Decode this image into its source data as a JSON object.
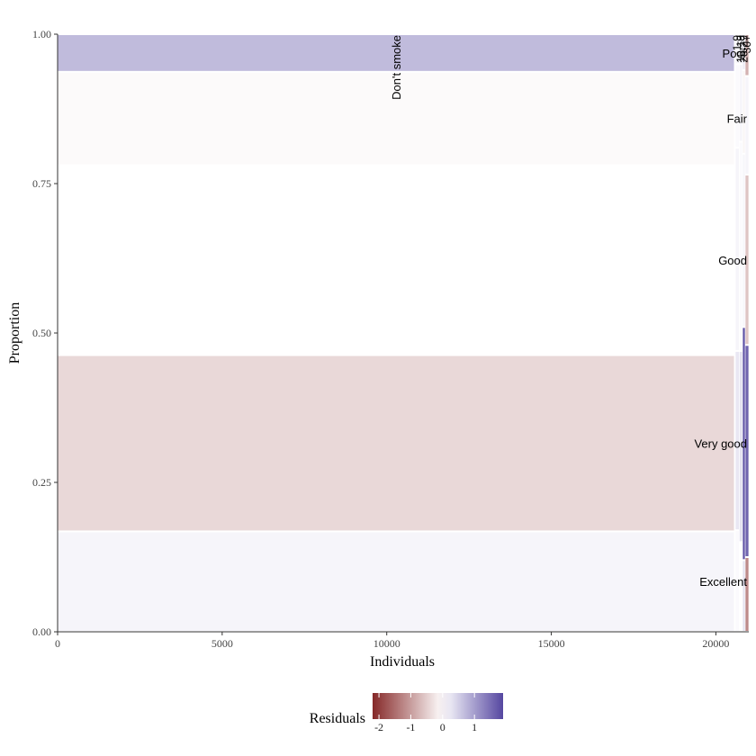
{
  "chart_data": {
    "type": "mosaic",
    "xlabel": "Individuals",
    "ylabel": "Proportion",
    "xlim": [
      0,
      21000
    ],
    "ylim": [
      0,
      1
    ],
    "x_ticks": [
      0,
      5000,
      10000,
      15000,
      20000
    ],
    "x_tick_labels": [
      "0",
      "5000",
      "10000",
      "15000",
      "20000"
    ],
    "y_ticks": [
      0,
      0.25,
      0.5,
      0.75,
      1
    ],
    "y_tick_labels": [
      "0.00",
      "0.25",
      "0.50",
      "0.75",
      "1.00"
    ],
    "grid": false,
    "columns": [
      {
        "label": "Don't smoke",
        "x0": 0,
        "x1": 20550,
        "cells": [
          {
            "category": "Excellent",
            "y0": 0.0,
            "y1": 0.168,
            "residual": 0.1
          },
          {
            "category": "Very good",
            "y0": 0.168,
            "y1": 0.463,
            "residual": -0.4
          },
          {
            "category": "Good",
            "y0": 0.463,
            "y1": 0.781,
            "residual": 0.0
          },
          {
            "category": "Fair",
            "y0": 0.781,
            "y1": 0.937,
            "residual": -0.05
          },
          {
            "category": "Poor",
            "y0": 0.937,
            "y1": 1.0,
            "residual": 0.7
          }
        ]
      },
      {
        "label": "1-9",
        "x0": 20600,
        "x1": 20700,
        "cells": [
          {
            "category": "Excellent",
            "y0": 0.0,
            "y1": 0.17,
            "residual": 0.05
          },
          {
            "category": "Very good",
            "y0": 0.17,
            "y1": 0.47,
            "residual": 0.25
          },
          {
            "category": "Good",
            "y0": 0.47,
            "y1": 0.81,
            "residual": 0.1
          },
          {
            "category": "Fair",
            "y0": 0.81,
            "y1": 0.95,
            "residual": 0.05
          },
          {
            "category": "Poor",
            "y0": 0.95,
            "y1": 1.0,
            "residual": 0.1
          }
        ]
      },
      {
        "label": "10-19",
        "x0": 20720,
        "x1": 20800,
        "cells": [
          {
            "category": "Excellent",
            "y0": 0.0,
            "y1": 0.15,
            "residual": 0.0
          },
          {
            "category": "Very good",
            "y0": 0.15,
            "y1": 0.47,
            "residual": 0.3
          },
          {
            "category": "Good",
            "y0": 0.47,
            "y1": 0.82,
            "residual": 0.05
          },
          {
            "category": "Fair",
            "y0": 0.82,
            "y1": 0.95,
            "residual": 0.1
          },
          {
            "category": "Poor",
            "y0": 0.95,
            "y1": 1.0,
            "residual": 0.15
          }
        ]
      },
      {
        "label": "20-29",
        "x0": 20820,
        "x1": 20880,
        "cells": [
          {
            "category": "Excellent",
            "y0": 0.0,
            "y1": 0.12,
            "residual": 0.3
          },
          {
            "category": "Very good",
            "y0": 0.12,
            "y1": 0.51,
            "residual": 1.8
          },
          {
            "category": "Good",
            "y0": 0.51,
            "y1": 0.8,
            "residual": 0.1
          },
          {
            "category": "Fair",
            "y0": 0.8,
            "y1": 0.94,
            "residual": -0.1
          },
          {
            "category": "Poor",
            "y0": 0.94,
            "y1": 1.0,
            "residual": 0.2
          }
        ]
      },
      {
        "label": "30+",
        "x0": 20900,
        "x1": 20990,
        "cells": [
          {
            "category": "Excellent",
            "y0": 0.0,
            "y1": 0.125,
            "residual": -1.2
          },
          {
            "category": "Very good",
            "y0": 0.125,
            "y1": 0.48,
            "residual": 1.6
          },
          {
            "category": "Good",
            "y0": 0.48,
            "y1": 0.765,
            "residual": -0.6
          },
          {
            "category": "Fair",
            "y0": 0.765,
            "y1": 0.93,
            "residual": 0.1
          },
          {
            "category": "Poor",
            "y0": 0.93,
            "y1": 1.0,
            "residual": -0.8
          }
        ]
      }
    ],
    "row_labels": [
      "Excellent",
      "Very good",
      "Good",
      "Fair",
      "Poor"
    ],
    "legend": {
      "title": "Residuals",
      "position": "bottom",
      "ticks": [
        -2,
        -1,
        0,
        1
      ],
      "tick_labels": [
        "-2",
        "-1",
        "0",
        "1"
      ],
      "range": [
        -2.2,
        1.9
      ],
      "low_color": "#7f1d1d",
      "mid_color": "#ffffff",
      "high_color": "#4c3d9b"
    }
  }
}
